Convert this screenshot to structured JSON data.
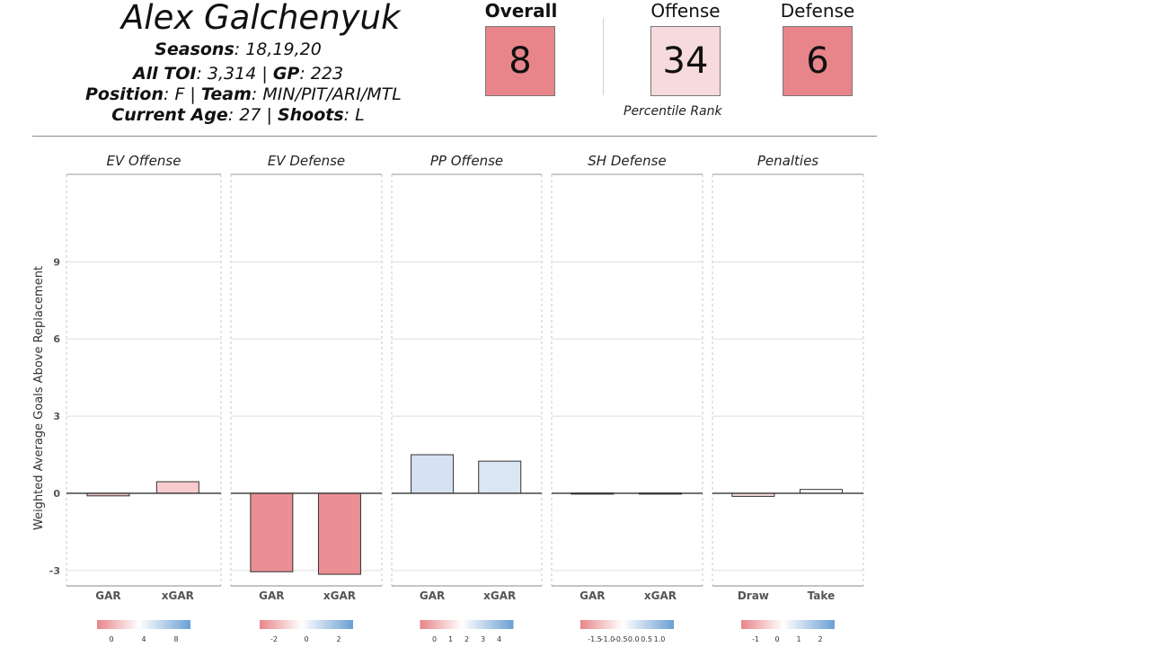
{
  "player": {
    "name": "Alex Galchenyuk",
    "seasons_label": "Seasons",
    "seasons": "18,19,20",
    "toi_label": "All TOI",
    "toi": "3,314",
    "gp_label": "GP",
    "gp": "223",
    "position_label": "Position",
    "position": "F",
    "team_label": "Team",
    "team": "MIN/PIT/ARI/MTL",
    "age_label": "Current Age",
    "age": "27",
    "shoots_label": "Shoots",
    "shoots": "L"
  },
  "scores": {
    "overall_label": "Overall",
    "overall": "8",
    "offense_label": "Offense",
    "offense": "34",
    "defense_label": "Defense",
    "defense": "6",
    "percentile_label": "Percentile Rank",
    "colors": {
      "overall": "#e8858a",
      "offense": "#f7dadc",
      "defense": "#e8858a"
    }
  },
  "chart_data": {
    "type": "bar",
    "ylabel": "Weighted Average Goals Above Replacement",
    "ylim": [
      -3.6,
      12.4
    ],
    "yticks": [
      -3,
      0,
      3,
      6,
      9
    ],
    "grid": true,
    "panels": [
      {
        "title": "EV Offense",
        "categories": [
          "GAR",
          "xGAR"
        ],
        "values": [
          -0.1,
          0.45
        ],
        "colors": [
          "#f2c6c8",
          "#f7cccf"
        ],
        "colorbar": {
          "ticks": [
            "0",
            "4",
            "8"
          ],
          "low": "#e8858a",
          "high": "#6b9fd3"
        }
      },
      {
        "title": "EV Defense",
        "categories": [
          "GAR",
          "xGAR"
        ],
        "values": [
          -3.05,
          -3.15
        ],
        "colors": [
          "#ea8f94",
          "#ea8f94"
        ],
        "colorbar": {
          "ticks": [
            "-2",
            "0",
            "2"
          ],
          "low": "#e8858a",
          "high": "#6b9fd3"
        }
      },
      {
        "title": "PP Offense",
        "categories": [
          "GAR",
          "xGAR"
        ],
        "values": [
          1.5,
          1.25
        ],
        "colors": [
          "#d6e2f2",
          "#dbe6f3"
        ],
        "colorbar": {
          "ticks": [
            "0",
            "1",
            "2",
            "3",
            "4"
          ],
          "low": "#e8858a",
          "high": "#6b9fd3"
        }
      },
      {
        "title": "SH Defense",
        "categories": [
          "GAR",
          "xGAR"
        ],
        "values": [
          0.01,
          0.01
        ],
        "colors": [
          "#f2eeee",
          "#f2eeee"
        ],
        "colorbar": {
          "ticks": [
            "-1.5",
            "-1.0",
            "-0.5",
            "0.0",
            "0.5",
            "1.0"
          ],
          "low": "#e8858a",
          "high": "#6b9fd3"
        }
      },
      {
        "title": "Penalties",
        "categories": [
          "Draw",
          "Take"
        ],
        "values": [
          -0.12,
          0.15
        ],
        "colors": [
          "#f7dcdd",
          "#ffffff"
        ],
        "colorbar": {
          "ticks": [
            "-1",
            "0",
            "1",
            "2"
          ],
          "low": "#e8858a",
          "high": "#6b9fd3"
        }
      }
    ]
  }
}
